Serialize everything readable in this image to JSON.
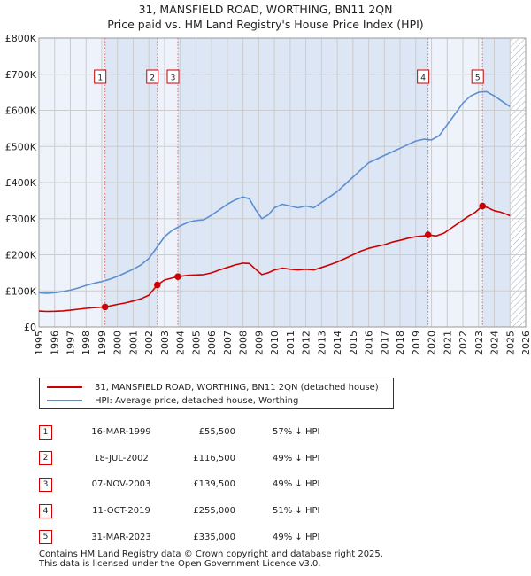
{
  "header": {
    "line1": "31, MANSFIELD ROAD, WORTHING, BN11 2QN",
    "line2": "Price paid vs. HM Land Registry's House Price Index (HPI)"
  },
  "colors": {
    "property": "#cc0000",
    "hpi": "#5b8fd0",
    "grid": "#cccccc",
    "plot_bg": "#eef2fa",
    "shade": "#dde6f4",
    "marker_line": "#e06666"
  },
  "chart_data": {
    "type": "line",
    "title": "31, MANSFIELD ROAD, WORTHING, BN11 2QN",
    "subtitle": "Price paid vs. HM Land Registry's House Price Index (HPI)",
    "xlim": [
      1995,
      2026
    ],
    "ylim": [
      0,
      800000
    ],
    "yticks": [
      0,
      100000,
      200000,
      300000,
      400000,
      500000,
      600000,
      700000,
      800000
    ],
    "ytick_labels": [
      "£0",
      "£100K",
      "£200K",
      "£300K",
      "£400K",
      "£500K",
      "£600K",
      "£700K",
      "£800K"
    ],
    "xticks": [
      "1995",
      "1996",
      "1997",
      "1998",
      "1999",
      "2000",
      "2001",
      "2002",
      "2003",
      "2004",
      "2005",
      "2006",
      "2007",
      "2008",
      "2009",
      "2010",
      "2011",
      "2012",
      "2013",
      "2014",
      "2015",
      "2016",
      "2017",
      "2018",
      "2019",
      "2020",
      "2021",
      "2022",
      "2023",
      "2024",
      "2025",
      "2026"
    ],
    "grid": true,
    "shaded_ranges": [
      [
        1999.21,
        2002.54
      ],
      [
        2003.85,
        2019.78
      ],
      [
        2023.25,
        2025.0
      ]
    ],
    "hatched_from": 2025.0,
    "series": [
      {
        "name": "31, MANSFIELD ROAD, WORTHING, BN11 2QN (detached house)",
        "color": "#cc0000",
        "points": [
          [
            1995,
            44000
          ],
          [
            1995.5,
            43000
          ],
          [
            1996,
            43500
          ],
          [
            1996.5,
            44500
          ],
          [
            1997,
            46500
          ],
          [
            1997.5,
            49000
          ],
          [
            1998,
            51500
          ],
          [
            1998.5,
            53500
          ],
          [
            1999.21,
            55500
          ],
          [
            1999.5,
            58000
          ],
          [
            2000,
            62500
          ],
          [
            2000.5,
            66500
          ],
          [
            2001,
            72000
          ],
          [
            2001.5,
            78000
          ],
          [
            2002,
            88000
          ],
          [
            2002.54,
            116500
          ],
          [
            2003,
            130000
          ],
          [
            2003.5,
            136000
          ],
          [
            2003.85,
            139500
          ],
          [
            2004.5,
            143000
          ],
          [
            2005,
            144000
          ],
          [
            2005.5,
            145000
          ],
          [
            2006,
            150000
          ],
          [
            2006.5,
            158000
          ],
          [
            2007,
            165000
          ],
          [
            2007.5,
            172000
          ],
          [
            2008,
            177000
          ],
          [
            2008.4,
            176000
          ],
          [
            2008.8,
            160000
          ],
          [
            2009.2,
            145000
          ],
          [
            2009.6,
            150000
          ],
          [
            2010,
            158000
          ],
          [
            2010.5,
            163000
          ],
          [
            2011,
            160000
          ],
          [
            2011.5,
            158000
          ],
          [
            2012,
            160000
          ],
          [
            2012.5,
            158000
          ],
          [
            2013,
            165000
          ],
          [
            2013.5,
            172000
          ],
          [
            2014,
            180000
          ],
          [
            2014.5,
            190000
          ],
          [
            2015,
            200000
          ],
          [
            2015.5,
            210000
          ],
          [
            2016,
            218000
          ],
          [
            2016.5,
            223000
          ],
          [
            2017,
            228000
          ],
          [
            2017.5,
            235000
          ],
          [
            2018,
            240000
          ],
          [
            2018.5,
            246000
          ],
          [
            2019,
            250000
          ],
          [
            2019.5,
            252000
          ],
          [
            2019.78,
            255000
          ],
          [
            2020.3,
            252000
          ],
          [
            2020.8,
            260000
          ],
          [
            2021.3,
            275000
          ],
          [
            2021.8,
            290000
          ],
          [
            2022.3,
            305000
          ],
          [
            2022.8,
            318000
          ],
          [
            2023.25,
            335000
          ],
          [
            2023.6,
            330000
          ],
          [
            2024,
            322000
          ],
          [
            2024.4,
            318000
          ],
          [
            2024.8,
            312000
          ],
          [
            2025.0,
            308000
          ]
        ]
      },
      {
        "name": "HPI: Average price, detached house, Worthing",
        "color": "#5b8fd0",
        "points": [
          [
            1995,
            95000
          ],
          [
            1995.5,
            93000
          ],
          [
            1996,
            95000
          ],
          [
            1996.5,
            98000
          ],
          [
            1997,
            102000
          ],
          [
            1997.5,
            108000
          ],
          [
            1998,
            115000
          ],
          [
            1998.5,
            121000
          ],
          [
            1999,
            126000
          ],
          [
            1999.5,
            132000
          ],
          [
            2000,
            140000
          ],
          [
            2000.5,
            150000
          ],
          [
            2001,
            160000
          ],
          [
            2001.5,
            172000
          ],
          [
            2002,
            190000
          ],
          [
            2002.5,
            220000
          ],
          [
            2003,
            250000
          ],
          [
            2003.5,
            268000
          ],
          [
            2004,
            280000
          ],
          [
            2004.5,
            290000
          ],
          [
            2005,
            295000
          ],
          [
            2005.5,
            297000
          ],
          [
            2006,
            310000
          ],
          [
            2006.5,
            325000
          ],
          [
            2007,
            340000
          ],
          [
            2007.5,
            352000
          ],
          [
            2008,
            360000
          ],
          [
            2008.4,
            355000
          ],
          [
            2008.8,
            325000
          ],
          [
            2009.2,
            300000
          ],
          [
            2009.6,
            310000
          ],
          [
            2010,
            330000
          ],
          [
            2010.5,
            340000
          ],
          [
            2011,
            335000
          ],
          [
            2011.5,
            330000
          ],
          [
            2012,
            335000
          ],
          [
            2012.5,
            330000
          ],
          [
            2013,
            345000
          ],
          [
            2013.5,
            360000
          ],
          [
            2014,
            375000
          ],
          [
            2014.5,
            395000
          ],
          [
            2015,
            415000
          ],
          [
            2015.5,
            435000
          ],
          [
            2016,
            455000
          ],
          [
            2016.5,
            465000
          ],
          [
            2017,
            475000
          ],
          [
            2017.5,
            485000
          ],
          [
            2018,
            495000
          ],
          [
            2018.5,
            505000
          ],
          [
            2019,
            515000
          ],
          [
            2019.5,
            520000
          ],
          [
            2020,
            518000
          ],
          [
            2020.5,
            530000
          ],
          [
            2021,
            560000
          ],
          [
            2021.5,
            590000
          ],
          [
            2022,
            620000
          ],
          [
            2022.5,
            640000
          ],
          [
            2023,
            650000
          ],
          [
            2023.5,
            652000
          ],
          [
            2024,
            640000
          ],
          [
            2024.5,
            625000
          ],
          [
            2025,
            610000
          ]
        ]
      }
    ],
    "sales": [
      {
        "n": "1",
        "year": 1999.21,
        "price": 55500,
        "date": "16-MAR-1999",
        "price_label": "£55,500",
        "hpi_label": "57% ↓ HPI"
      },
      {
        "n": "2",
        "year": 2002.54,
        "price": 116500,
        "date": "18-JUL-2002",
        "price_label": "£116,500",
        "hpi_label": "49% ↓ HPI"
      },
      {
        "n": "3",
        "year": 2003.85,
        "price": 139500,
        "date": "07-NOV-2003",
        "price_label": "£139,500",
        "hpi_label": "49% ↓ HPI"
      },
      {
        "n": "4",
        "year": 2019.78,
        "price": 255000,
        "date": "11-OCT-2019",
        "price_label": "£255,000",
        "hpi_label": "51% ↓ HPI"
      },
      {
        "n": "5",
        "year": 2023.25,
        "price": 335000,
        "date": "31-MAR-2023",
        "price_label": "£335,000",
        "hpi_label": "49% ↓ HPI"
      }
    ]
  },
  "legend": {
    "property_label": "31, MANSFIELD ROAD, WORTHING, BN11 2QN (detached house)",
    "hpi_label": "HPI: Average price, detached house, Worthing"
  },
  "footer": {
    "line1": "Contains HM Land Registry data © Crown copyright and database right 2025.",
    "line2": "This data is licensed under the Open Government Licence v3.0."
  }
}
